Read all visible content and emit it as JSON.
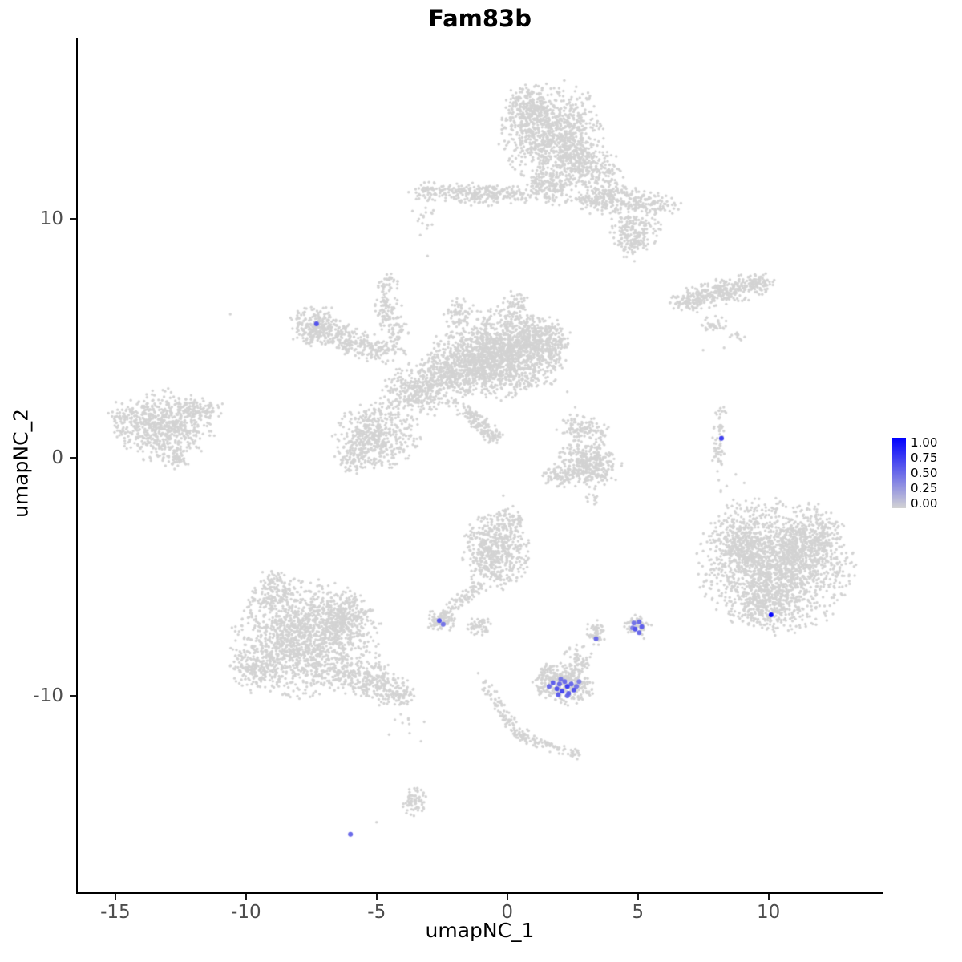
{
  "chart_data": {
    "type": "scatter",
    "title": "Fam83b",
    "xlabel": "umapNC_1",
    "ylabel": "umapNC_2",
    "xlim": [
      -16.5,
      14.4
    ],
    "ylim": [
      -18.3,
      17.6
    ],
    "x_ticks": [
      -15,
      -10,
      -5,
      0,
      5,
      10
    ],
    "y_ticks": [
      -10,
      0,
      10
    ],
    "grid": false,
    "legend_position": "right",
    "legend": {
      "labels": [
        "1.00",
        "0.75",
        "0.50",
        "0.25",
        "0.00"
      ],
      "color_high": "#0000FF",
      "color_low": "#D3D3D3"
    },
    "style": {
      "background_color": "#FFFFFF",
      "point_color": "#D3D3D3",
      "gray_point_radius": 1.7,
      "expr_point_radius": 3.0
    },
    "clusters": [
      [
        1.7,
        13.6,
        0.9,
        1.0,
        900,
        0
      ],
      [
        0.8,
        14.6,
        0.45,
        0.45,
        200,
        0
      ],
      [
        2.6,
        12.5,
        0.55,
        0.5,
        220,
        0
      ],
      [
        3.6,
        11.9,
        0.4,
        0.45,
        120,
        -30
      ],
      [
        1.6,
        11.3,
        0.45,
        0.35,
        150,
        0
      ],
      [
        -0.9,
        11.05,
        1.0,
        0.22,
        260,
        0
      ],
      [
        -3.0,
        11.15,
        0.35,
        0.18,
        60,
        0
      ],
      [
        3.9,
        10.8,
        0.8,
        0.3,
        240,
        0
      ],
      [
        5.6,
        10.6,
        0.5,
        0.25,
        90,
        0
      ],
      [
        4.9,
        9.6,
        0.45,
        0.45,
        150,
        0
      ],
      [
        4.75,
        8.9,
        0.3,
        0.3,
        60,
        0
      ],
      [
        -3.2,
        10.0,
        0.25,
        0.45,
        18,
        0
      ],
      [
        -7.3,
        5.5,
        0.5,
        0.42,
        230,
        0
      ],
      [
        -6.4,
        5.0,
        0.5,
        0.3,
        120,
        -25
      ],
      [
        -5.2,
        4.6,
        0.6,
        0.28,
        150,
        -17
      ],
      [
        -4.5,
        5.8,
        0.28,
        0.65,
        130,
        15
      ],
      [
        -4.6,
        7.2,
        0.2,
        0.25,
        35,
        0
      ],
      [
        -0.3,
        4.3,
        1.15,
        0.85,
        1500,
        0
      ],
      [
        1.3,
        4.9,
        0.55,
        0.5,
        300,
        0
      ],
      [
        -2.0,
        3.6,
        0.7,
        0.55,
        350,
        30
      ],
      [
        -3.3,
        2.9,
        0.75,
        0.55,
        380,
        25
      ],
      [
        -5.0,
        0.9,
        0.75,
        0.65,
        480,
        0
      ],
      [
        -5.9,
        -0.1,
        0.35,
        0.3,
        80,
        0
      ],
      [
        -1.25,
        1.6,
        0.55,
        0.16,
        110,
        -44
      ],
      [
        -0.55,
        0.9,
        0.2,
        0.2,
        40,
        0
      ],
      [
        0.3,
        6.3,
        0.3,
        0.3,
        60,
        0
      ],
      [
        -1.9,
        6.1,
        0.3,
        0.25,
        60,
        0
      ],
      [
        -13.1,
        1.3,
        0.85,
        0.7,
        650,
        0
      ],
      [
        -11.7,
        2.0,
        0.4,
        0.25,
        80,
        0
      ],
      [
        -12.7,
        -0.1,
        0.3,
        0.2,
        40,
        0
      ],
      [
        -14.5,
        1.6,
        0.4,
        0.4,
        80,
        0
      ],
      [
        8.1,
        6.9,
        0.95,
        0.28,
        320,
        12
      ],
      [
        9.6,
        7.3,
        0.35,
        0.2,
        60,
        0
      ],
      [
        7.0,
        6.5,
        0.3,
        0.2,
        50,
        0
      ],
      [
        7.9,
        5.6,
        0.3,
        0.15,
        35,
        0
      ],
      [
        8.8,
        5.1,
        0.15,
        0.12,
        12,
        0
      ],
      [
        8.1,
        0.5,
        0.13,
        0.65,
        55,
        0
      ],
      [
        8.2,
        2.0,
        0.1,
        0.15,
        8,
        0
      ],
      [
        2.9,
        1.2,
        0.45,
        0.3,
        110,
        0
      ],
      [
        3.1,
        -0.3,
        0.6,
        0.45,
        380,
        0
      ],
      [
        2.0,
        -0.75,
        0.3,
        0.25,
        70,
        0
      ],
      [
        3.3,
        -1.7,
        0.15,
        0.15,
        10,
        0
      ],
      [
        10.3,
        -4.5,
        1.35,
        1.3,
        1900,
        0
      ],
      [
        11.7,
        -3.5,
        0.6,
        0.5,
        200,
        0
      ],
      [
        9.0,
        -3.6,
        0.5,
        0.5,
        180,
        0
      ],
      [
        10.0,
        -6.3,
        0.6,
        0.4,
        150,
        0
      ],
      [
        8.6,
        -1.7,
        0.35,
        0.5,
        12,
        0
      ],
      [
        -0.45,
        -4.0,
        0.6,
        0.75,
        520,
        0
      ],
      [
        0.05,
        -2.7,
        0.3,
        0.3,
        70,
        0
      ],
      [
        -1.7,
        -5.9,
        0.55,
        0.15,
        80,
        45
      ],
      [
        -2.55,
        -6.85,
        0.28,
        0.22,
        90,
        0
      ],
      [
        -1.05,
        -7.05,
        0.22,
        0.18,
        55,
        0
      ],
      [
        -7.7,
        -7.6,
        1.3,
        1.1,
        1500,
        0
      ],
      [
        -8.9,
        -5.6,
        0.5,
        0.4,
        150,
        0
      ],
      [
        -6.2,
        -6.7,
        0.5,
        0.45,
        200,
        0
      ],
      [
        -5.2,
        -9.4,
        0.75,
        0.4,
        280,
        -20
      ],
      [
        -4.1,
        -10.0,
        0.3,
        0.2,
        50,
        0
      ],
      [
        -9.6,
        -8.9,
        0.5,
        0.45,
        150,
        0
      ],
      [
        -3.9,
        -11.3,
        0.35,
        0.5,
        8,
        0
      ],
      [
        2.2,
        -9.5,
        0.55,
        0.4,
        330,
        0
      ],
      [
        2.7,
        -8.5,
        0.25,
        0.3,
        60,
        0
      ],
      [
        1.6,
        -9.0,
        0.2,
        0.2,
        40,
        0
      ],
      [
        3.4,
        -7.4,
        0.2,
        0.25,
        60,
        0
      ],
      [
        5.0,
        -7.1,
        0.25,
        0.25,
        60,
        0
      ],
      [
        -0.3,
        -10.45,
        0.8,
        0.12,
        80,
        -58
      ],
      [
        1.5,
        -12.05,
        0.6,
        0.12,
        60,
        -20
      ],
      [
        0.6,
        -11.6,
        0.2,
        0.15,
        30,
        0
      ],
      [
        2.6,
        -12.4,
        0.15,
        0.12,
        15,
        0
      ],
      [
        -3.5,
        -14.4,
        0.25,
        0.3,
        70,
        0
      ]
    ],
    "singletons": [
      [
        -10.6,
        6.0
      ],
      [
        -3.05,
        8.45
      ],
      [
        -5.0,
        -15.3
      ],
      [
        2.3,
        2.75
      ],
      [
        2.6,
        2.1
      ],
      [
        -0.15,
        -1.6
      ],
      [
        8.3,
        4.6
      ],
      [
        7.5,
        4.5
      ],
      [
        3.35,
        -1.8
      ],
      [
        -4.3,
        -11.0
      ],
      [
        -3.3,
        -11.9
      ],
      [
        8.4,
        -1.2
      ],
      [
        8.9,
        -2.0
      ]
    ],
    "expressing_cells": [
      [
        -7.3,
        5.6,
        0.6
      ],
      [
        8.2,
        0.8,
        0.7
      ],
      [
        10.1,
        -6.6,
        0.97
      ],
      [
        -2.6,
        -6.85,
        0.6
      ],
      [
        -2.45,
        -7.0,
        0.45
      ],
      [
        3.4,
        -7.6,
        0.5
      ],
      [
        4.85,
        -6.95,
        0.45
      ],
      [
        5.05,
        -6.9,
        0.5
      ],
      [
        5.15,
        -7.1,
        0.55
      ],
      [
        4.9,
        -7.2,
        0.6
      ],
      [
        5.05,
        -7.35,
        0.5
      ],
      [
        4.8,
        -7.15,
        0.4
      ],
      [
        1.6,
        -9.6,
        0.5
      ],
      [
        1.75,
        -9.45,
        0.55
      ],
      [
        1.9,
        -9.7,
        0.6
      ],
      [
        2.0,
        -9.5,
        0.5
      ],
      [
        2.1,
        -9.8,
        0.65
      ],
      [
        2.2,
        -9.4,
        0.5
      ],
      [
        2.3,
        -9.6,
        0.7
      ],
      [
        2.35,
        -9.9,
        0.55
      ],
      [
        2.45,
        -9.5,
        0.5
      ],
      [
        2.55,
        -9.75,
        0.6
      ],
      [
        2.65,
        -9.6,
        0.45
      ],
      [
        2.3,
        -10.0,
        0.5
      ],
      [
        2.05,
        -9.3,
        0.45
      ],
      [
        2.75,
        -9.4,
        0.4
      ],
      [
        1.95,
        -9.95,
        0.55
      ],
      [
        -6.0,
        -15.8,
        0.5
      ]
    ]
  }
}
